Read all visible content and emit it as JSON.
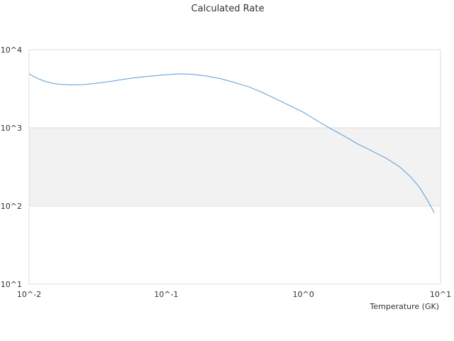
{
  "chart_data": {
    "type": "line",
    "title": "Calculated Rate",
    "xlabel": "Temperature (GK)",
    "ylabel": "",
    "x_scale": "log",
    "y_scale": "log",
    "xlim": [
      0.01,
      10
    ],
    "ylim": [
      10,
      10000
    ],
    "x_tick_labels": [
      "10^-2",
      "10^-1",
      "10^0",
      "10^1"
    ],
    "y_tick_labels": [
      "10^1",
      "10^2",
      "10^3",
      "10^4"
    ],
    "legend": "none",
    "grid": "horizontal",
    "colors": {
      "series": "#5b9bd5",
      "band": "#f2f2f2",
      "grid": "#dddddd",
      "text": "#333333"
    },
    "series": [
      {
        "x": [
          0.01,
          0.0115,
          0.013,
          0.015,
          0.017,
          0.02,
          0.025,
          0.03,
          0.04,
          0.05,
          0.06,
          0.07,
          0.08,
          0.09,
          0.1,
          0.12,
          0.14,
          0.16,
          0.2,
          0.25,
          0.3,
          0.4,
          0.5,
          0.6,
          0.7,
          0.8,
          0.9,
          1.0,
          1.2,
          1.5,
          2.0,
          2.5,
          3.0,
          4.0,
          5.0,
          6.0,
          7.0,
          8.0,
          9.0
        ],
        "values": [
          4900,
          4300,
          3950,
          3700,
          3600,
          3550,
          3580,
          3700,
          3950,
          4200,
          4400,
          4520,
          4620,
          4720,
          4800,
          4900,
          4900,
          4820,
          4580,
          4250,
          3900,
          3350,
          2850,
          2450,
          2150,
          1920,
          1730,
          1580,
          1300,
          1030,
          780,
          620,
          530,
          410,
          320,
          240,
          175,
          120,
          82
        ]
      }
    ]
  }
}
